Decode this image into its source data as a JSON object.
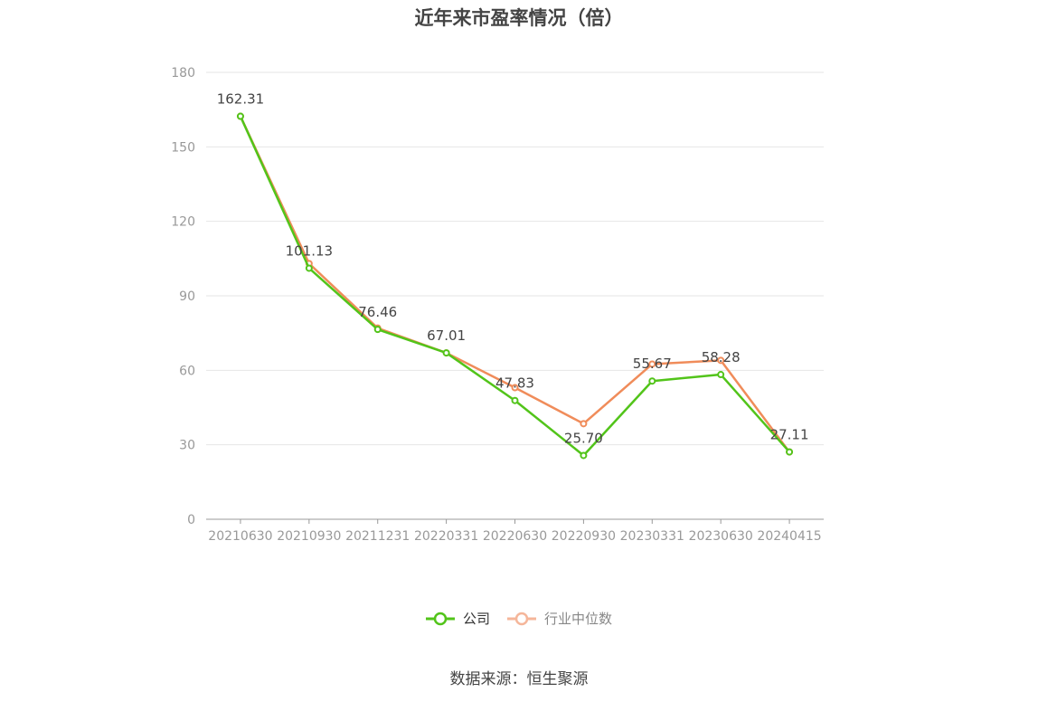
{
  "chart_data": {
    "type": "line",
    "title": "近年来市盈率情况（倍）",
    "categories": [
      "20210630",
      "20210930",
      "20211231",
      "20220331",
      "20220630",
      "20220930",
      "20230331",
      "20230630",
      "20240415"
    ],
    "series": [
      {
        "name": "公司",
        "color": "#52c41a",
        "values": [
          162.31,
          101.13,
          76.46,
          67.01,
          47.83,
          25.7,
          55.67,
          58.28,
          27.11
        ]
      },
      {
        "name": "行业中位数",
        "color": "#f08c5a",
        "values": [
          162.31,
          103.0,
          77.0,
          67.01,
          53.0,
          38.5,
          62.5,
          64.0,
          27.11
        ]
      }
    ],
    "data_labels": [
      "162.31",
      "101.13",
      "76.46",
      "67.01",
      "47.83",
      "25.70",
      "55.67",
      "58.28",
      "27.11"
    ],
    "yticks": [
      "0",
      "30",
      "60",
      "90",
      "120",
      "150",
      "180"
    ],
    "ylim": [
      0,
      180
    ],
    "grid": true,
    "legend_position": "bottom"
  },
  "source_text": "数据来源：恒生聚源"
}
